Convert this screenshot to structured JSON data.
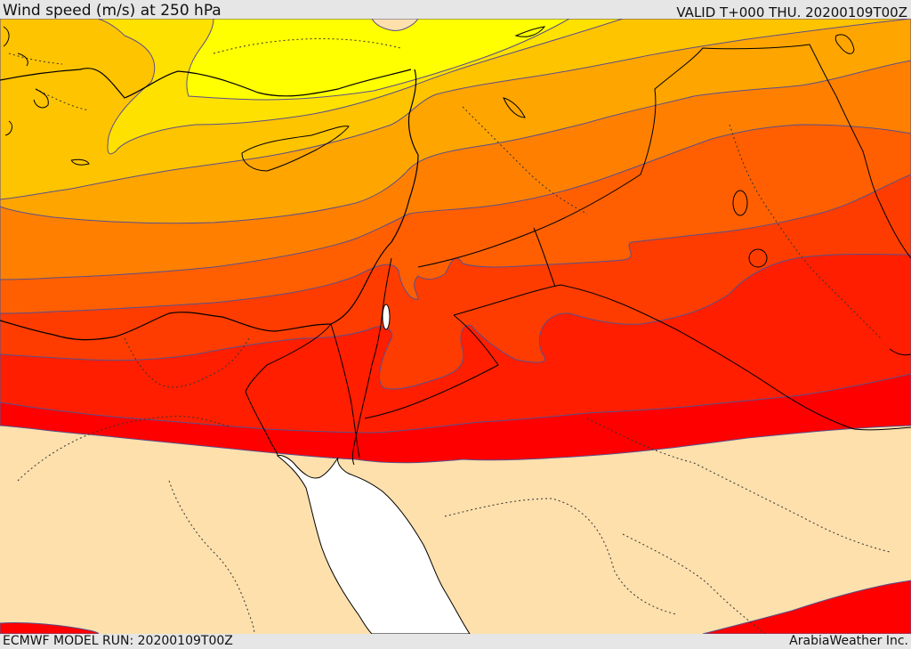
{
  "header": {
    "title": "Wind speed (m/s) at 250 hPa",
    "valid": "VALID T+000 THU. 20200109T00Z"
  },
  "footer": {
    "model_run": "ECMWF MODEL RUN: 20200109T00Z",
    "credit": "ArabiaWeather Inc."
  },
  "colors": {
    "band_yellow": "#ffff00",
    "band_light_gold": "#ffe100",
    "band_gold": "#ffc400",
    "band_orange_light": "#ffa500",
    "band_orange": "#ff8000",
    "band_dark_orange": "#ff5f00",
    "band_red_orange": "#ff3c00",
    "band_red_light": "#ff1e00",
    "band_red": "#ff0000",
    "calm_land": "#fde0ac",
    "sea": "#ffffff",
    "contour": "#5a4f8a",
    "border": "#000000"
  }
}
